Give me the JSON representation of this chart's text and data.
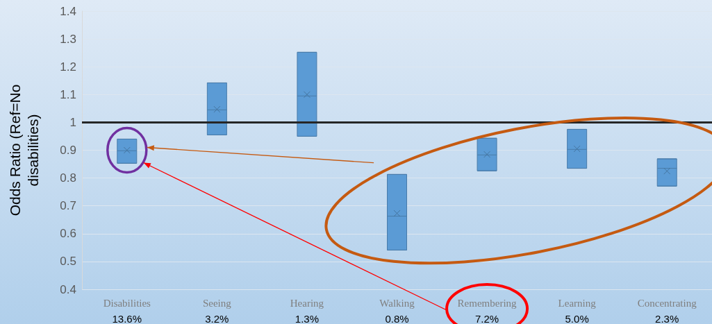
{
  "chart_data": {
    "type": "box",
    "ylabel": "Odds Ratio (Ref=No\ndisabilities)",
    "categories": [
      "Disabilities",
      "Seeing",
      "Hearing",
      "Walking",
      "Remembering",
      "Learning",
      "Concentrating"
    ],
    "series": [
      {
        "color": "#5b9bd5",
        "boxes": [
          {
            "low": 0.853,
            "q1": 0.853,
            "median": 0.898,
            "q3": 0.94,
            "high": 0.94,
            "mean": 0.9
          },
          {
            "low": 0.955,
            "q1": 0.955,
            "median": 1.045,
            "q3": 1.142,
            "high": 1.142,
            "mean": 1.047
          },
          {
            "low": 0.95,
            "q1": 0.95,
            "median": 1.095,
            "q3": 1.252,
            "high": 1.252,
            "mean": 1.1
          },
          {
            "low": 0.541,
            "q1": 0.541,
            "median": 0.663,
            "q3": 0.813,
            "high": 0.813,
            "mean": 0.673
          },
          {
            "low": 0.826,
            "q1": 0.826,
            "median": 0.883,
            "q3": 0.943,
            "high": 0.943,
            "mean": 0.885
          },
          {
            "low": 0.835,
            "q1": 0.835,
            "median": 0.903,
            "q3": 0.975,
            "high": 0.975,
            "mean": 0.905
          },
          {
            "low": 0.771,
            "q1": 0.771,
            "median": 0.835,
            "q3": 0.869,
            "high": 0.869,
            "mean": 0.825
          }
        ]
      }
    ],
    "ylim": [
      0.4,
      1.4
    ],
    "yticks": [
      0.4,
      0.5,
      0.6,
      0.7,
      0.8,
      0.9,
      1,
      1.1,
      1.2,
      1.3,
      1.4
    ],
    "grid": "y",
    "marker": "cross",
    "ref_lines": [
      {
        "axis": "y",
        "value": 1,
        "color": "#262626"
      }
    ],
    "annotations": [
      "13.6%",
      "3.2%",
      "1.3%",
      "0.8%",
      "7.2%",
      "5.0%",
      "2.3%"
    ]
  }
}
